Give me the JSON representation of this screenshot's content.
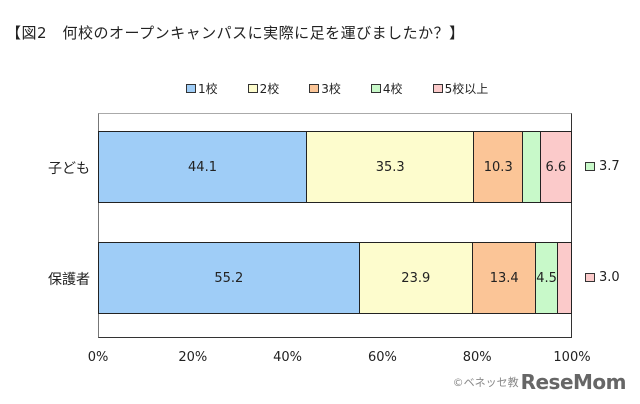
{
  "title": "【図2　何校のオープンキャンパスに実際に足を運びましたか？】",
  "legend": [
    {
      "label": "1校",
      "color": "#9fcdf7"
    },
    {
      "label": "2校",
      "color": "#fdfccd"
    },
    {
      "label": "3校",
      "color": "#fbc597"
    },
    {
      "label": "4校",
      "color": "#c8f9c9"
    },
    {
      "label": "5校以上",
      "color": "#fbcaca"
    }
  ],
  "x_ticks": [
    "0%",
    "20%",
    "40%",
    "60%",
    "80%",
    "100%"
  ],
  "rows": [
    {
      "label": "子ども",
      "segments": [
        {
          "value": 44.1,
          "text": "44.1"
        },
        {
          "value": 35.3,
          "text": "35.3"
        },
        {
          "value": 10.3,
          "text": "10.3"
        },
        {
          "value": 3.7,
          "text": ""
        },
        {
          "value": 6.6,
          "text": "6.6"
        }
      ],
      "outside_label": "3.7",
      "outside_color": "#c8f9c9"
    },
    {
      "label": "保護者",
      "segments": [
        {
          "value": 55.2,
          "text": "55.2"
        },
        {
          "value": 23.9,
          "text": "23.9"
        },
        {
          "value": 13.4,
          "text": "13.4"
        },
        {
          "value": 4.5,
          "text": "4.5"
        },
        {
          "value": 3.0,
          "text": ""
        }
      ],
      "outside_label": "3.0",
      "outside_color": "#fbcaca"
    }
  ],
  "credit": {
    "text": "©ベネッセ教",
    "logo": "ReseMom"
  },
  "chart_data": {
    "type": "bar",
    "orientation": "horizontal",
    "stacked": true,
    "title": "【図2　何校のオープンキャンパスに実際に足を運びましたか？】",
    "categories": [
      "子ども",
      "保護者"
    ],
    "series": [
      {
        "name": "1校",
        "values": [
          44.1,
          55.2
        ]
      },
      {
        "name": "2校",
        "values": [
          35.3,
          23.9
        ]
      },
      {
        "name": "3校",
        "values": [
          10.3,
          13.4
        ]
      },
      {
        "name": "4校",
        "values": [
          3.7,
          4.5
        ]
      },
      {
        "name": "5校以上",
        "values": [
          6.6,
          3.0
        ]
      }
    ],
    "xlabel": "",
    "ylabel": "",
    "xlim": [
      0,
      100
    ],
    "x_ticks": [
      "0%",
      "20%",
      "40%",
      "60%",
      "80%",
      "100%"
    ],
    "legend_position": "top",
    "grid": false
  }
}
